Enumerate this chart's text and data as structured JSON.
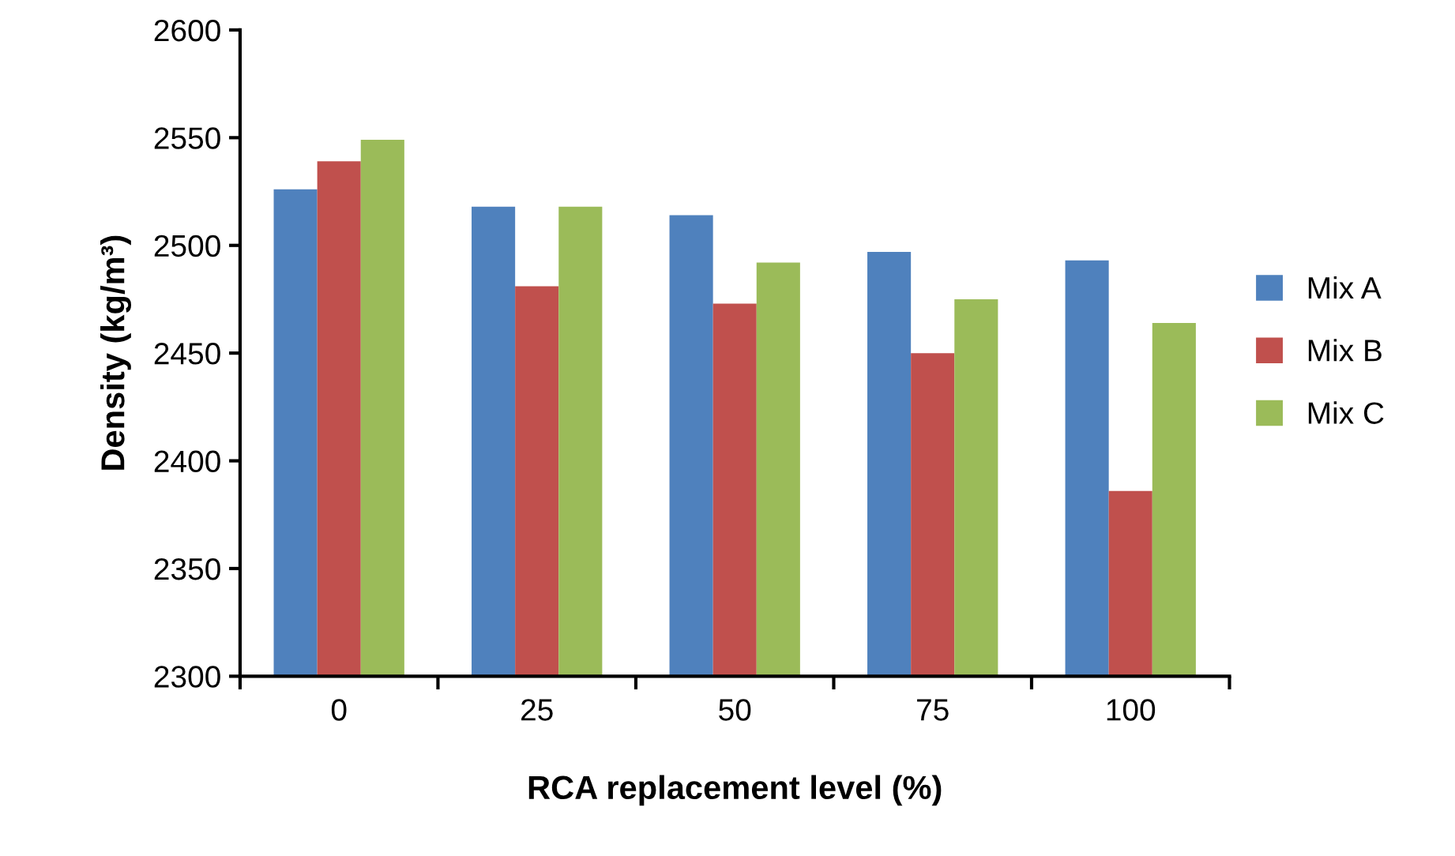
{
  "chart_data": {
    "type": "bar",
    "xlabel": "RCA replacement level (%)",
    "ylabel": "Density (kg/m³)",
    "categories": [
      "0",
      "25",
      "50",
      "75",
      "100"
    ],
    "series": [
      {
        "name": "Mix A",
        "color": "#4f81bd",
        "values": [
          2526,
          2518,
          2514,
          2497,
          2493
        ]
      },
      {
        "name": "Mix B",
        "color": "#c0504d",
        "values": [
          2539,
          2481,
          2473,
          2450,
          2386
        ]
      },
      {
        "name": "Mix C",
        "color": "#9bbb59",
        "values": [
          2549,
          2518,
          2492,
          2475,
          2464
        ]
      }
    ],
    "ylim": [
      2300,
      2600
    ],
    "yticks": [
      2300,
      2350,
      2400,
      2450,
      2500,
      2550,
      2600
    ],
    "grid": false,
    "legend": "right"
  }
}
